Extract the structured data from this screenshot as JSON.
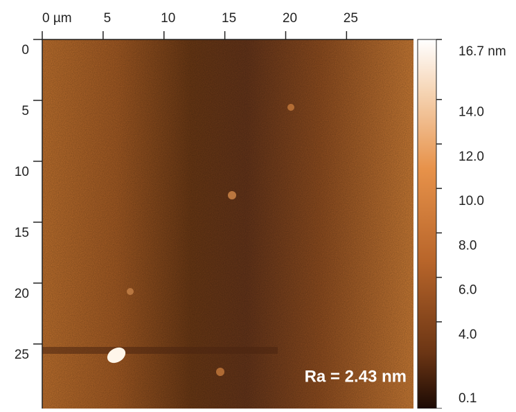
{
  "chart_data": {
    "type": "image",
    "xlim": [
      0,
      30.5
    ],
    "xticks": [
      {
        "value": 0,
        "label": "0 µm"
      },
      5,
      10,
      15,
      20,
      25
    ],
    "ylim": [
      0,
      30.3
    ],
    "yticks": [
      0,
      5,
      10,
      15,
      20,
      25
    ],
    "clim": [
      0.1,
      16.7
    ],
    "cticks": [
      {
        "value": 16.7,
        "label": "16.7 nm"
      },
      {
        "value": 14,
        "label": "14.0"
      },
      {
        "value": 12,
        "label": "12.0"
      },
      {
        "value": 10,
        "label": "10.0"
      },
      {
        "value": 8,
        "label": "8.0"
      },
      {
        "value": 6,
        "label": "6.0"
      },
      {
        "value": 4,
        "label": "4.0"
      },
      0.1
    ],
    "annotation": "Ra = 2.43 nm"
  }
}
